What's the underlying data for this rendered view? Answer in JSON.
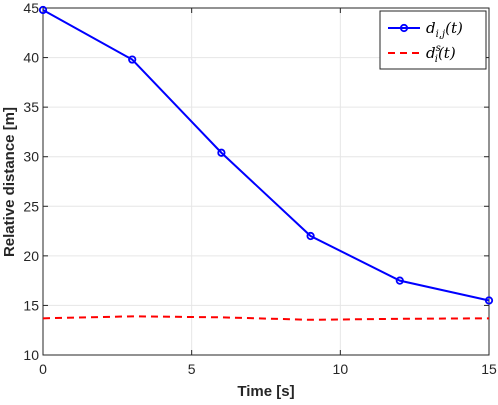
{
  "chart_data": {
    "type": "line",
    "xlabel": "Time [s]",
    "ylabel": "Relative distance [m]",
    "xlim": [
      0,
      15
    ],
    "ylim": [
      10,
      45
    ],
    "xticks": [
      0,
      5,
      10,
      15
    ],
    "yticks": [
      10,
      15,
      20,
      25,
      30,
      35,
      40,
      45
    ],
    "grid": true,
    "legend_position": "top-right",
    "series": [
      {
        "name": "d_{i,j}(t)",
        "legend_main": "d",
        "legend_sub": "i,j",
        "legend_sup": "",
        "legend_suffix": "(t)",
        "color": "#0000ff",
        "style": "solid-markers",
        "x": [
          0,
          3,
          6,
          9,
          12,
          15
        ],
        "y": [
          44.8,
          39.8,
          30.4,
          22.0,
          17.5,
          15.5
        ]
      },
      {
        "name": "d_i^s(t)",
        "legend_main": "d",
        "legend_sub": "i",
        "legend_sup": "s",
        "legend_suffix": "(t)",
        "color": "#ff0000",
        "style": "dashed",
        "x": [
          0,
          3,
          6,
          9,
          12,
          15
        ],
        "y": [
          13.7,
          13.9,
          13.8,
          13.55,
          13.65,
          13.7
        ]
      }
    ]
  }
}
